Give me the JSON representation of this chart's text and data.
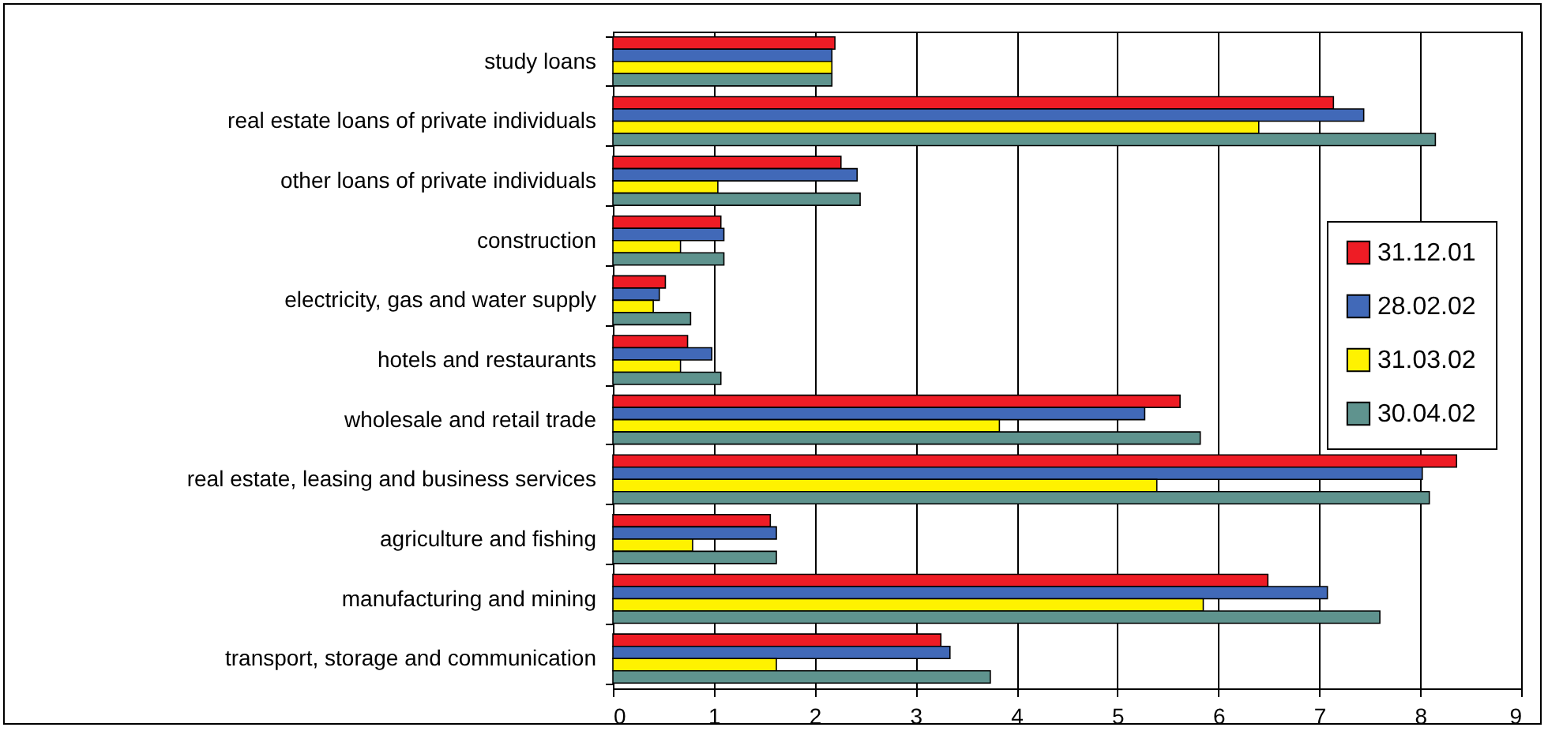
{
  "chart_data": {
    "type": "bar",
    "orientation": "horizontal",
    "categories": [
      "study loans",
      "real estate loans of private individuals",
      "other loans of private individuals",
      "construction",
      "electricity, gas and water supply",
      "hotels and restaurants",
      "wholesale and retail trade",
      "real estate, leasing and business services",
      "agriculture and fishing",
      "manufacturing and mining",
      "transport, storage and communication"
    ],
    "series": [
      {
        "name": "31.12.01",
        "color": "#ee1c25",
        "values": [
          2.2,
          7.14,
          2.26,
          1.07,
          0.52,
          0.74,
          5.62,
          8.36,
          1.56,
          6.49,
          3.25
        ]
      },
      {
        "name": "28.02.02",
        "color": "#4169b8",
        "values": [
          2.17,
          7.44,
          2.42,
          1.1,
          0.46,
          0.98,
          5.27,
          8.02,
          1.62,
          7.08,
          3.34
        ]
      },
      {
        "name": "31.03.02",
        "color": "#fff200",
        "values": [
          2.17,
          6.4,
          1.04,
          0.67,
          0.4,
          0.67,
          3.83,
          5.39,
          0.79,
          5.85,
          1.62
        ]
      },
      {
        "name": "30.04.02",
        "color": "#5f938e",
        "values": [
          2.17,
          8.15,
          2.45,
          1.1,
          0.77,
          1.07,
          5.82,
          8.09,
          1.62,
          7.6,
          3.74
        ]
      }
    ],
    "xlim": [
      0,
      9
    ],
    "xticks": [
      0,
      1,
      2,
      3,
      4,
      5,
      6,
      7,
      8,
      9
    ],
    "grid": "x",
    "legend": "right"
  }
}
